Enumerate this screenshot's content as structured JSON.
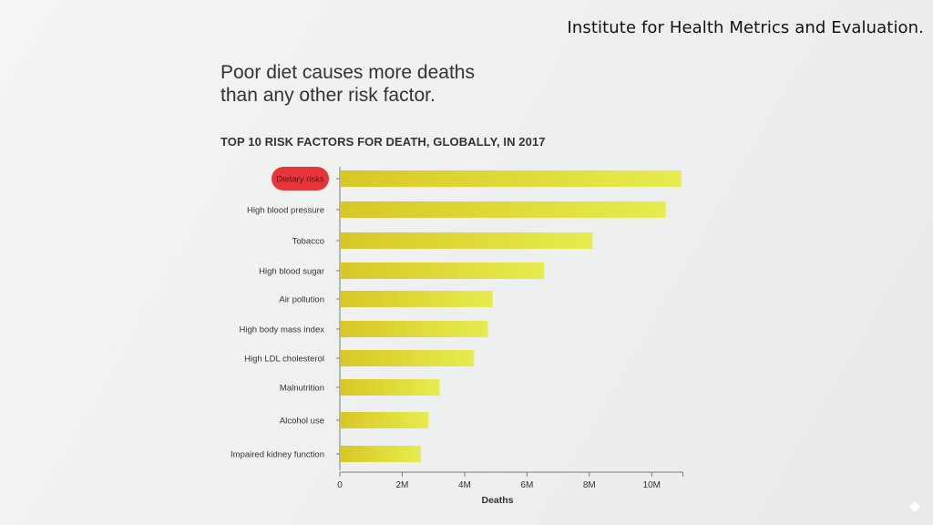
{
  "source": "Institute for Health Metrics and Evaluation.",
  "headline": {
    "line1": "Poor diet causes more deaths",
    "line2": "than any other risk factor."
  },
  "chart_data": {
    "type": "bar",
    "orientation": "horizontal",
    "title": "TOP 10 RISK FACTORS FOR DEATH, GLOBALLY, IN 2017",
    "xlabel": "Deaths",
    "ylabel": "",
    "categories": [
      "Dietary risks",
      "High blood pressure",
      "Tobacco",
      "High blood sugar",
      "Air pollution",
      "High body mass index",
      "High LDL cholesterol",
      "Malnutrition",
      "Alcohol use",
      "Impaired kidney function"
    ],
    "values": [
      10950000,
      10450000,
      8100000,
      6550000,
      4900000,
      4750000,
      4300000,
      3200000,
      2850000,
      2600000
    ],
    "xlim": [
      0,
      11000000
    ],
    "x_ticks": [
      0,
      2000000,
      4000000,
      6000000,
      8000000,
      10000000
    ],
    "x_tick_labels": [
      "0",
      "2M",
      "4M",
      "6M",
      "8M",
      "10M"
    ],
    "highlight": "Dietary risks",
    "colors": {
      "bar_start": "#d8c726",
      "bar_end": "#e6ec4e",
      "highlight": "#e8353a",
      "axis": "#7a7a7a",
      "text": "#333333"
    },
    "grid": false
  }
}
